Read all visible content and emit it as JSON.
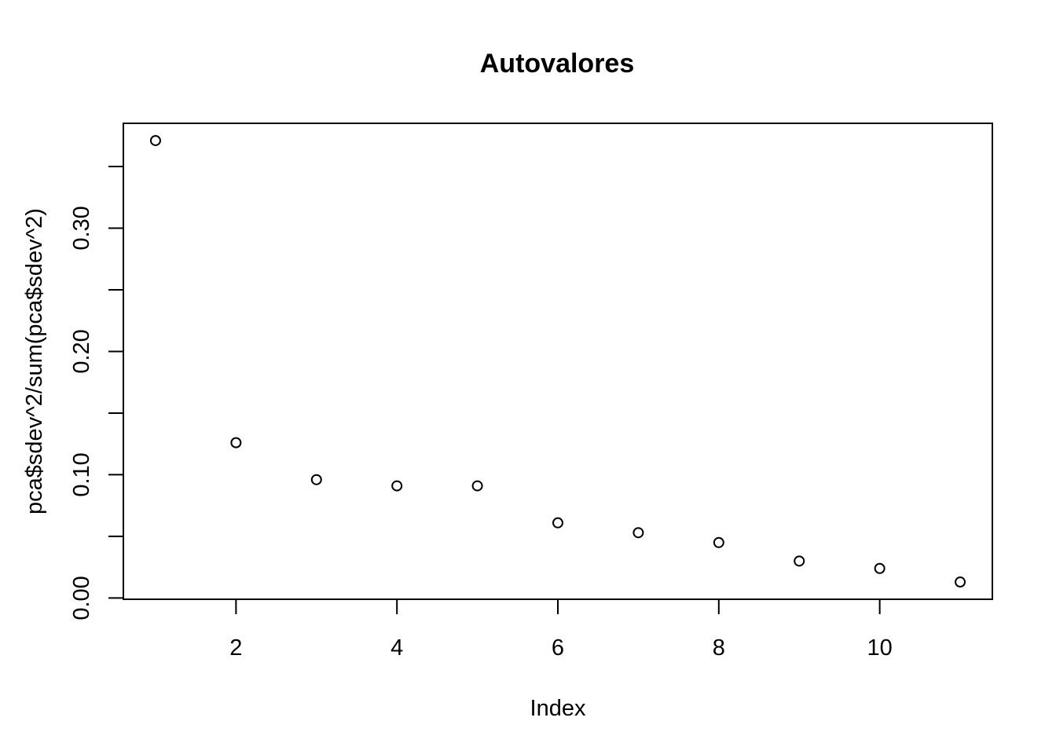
{
  "chart_data": {
    "type": "scatter",
    "title": "Autovalores",
    "xlabel": "Index",
    "ylabel": "pca$sdev^2/sum(pca$sdev^2)",
    "x": [
      1,
      2,
      3,
      4,
      5,
      6,
      7,
      8,
      9,
      10,
      11
    ],
    "y": [
      0.371,
      0.126,
      0.096,
      0.091,
      0.091,
      0.061,
      0.053,
      0.045,
      0.03,
      0.024,
      0.013
    ],
    "xlim": [
      0.6,
      11.4
    ],
    "ylim": [
      -0.001,
      0.385
    ],
    "x_ticks": [
      2,
      4,
      6,
      8,
      10
    ],
    "x_tick_labels": [
      "2",
      "4",
      "6",
      "8",
      "10"
    ],
    "y_ticks": [
      0.0,
      0.05,
      0.1,
      0.15,
      0.2,
      0.25,
      0.3,
      0.35
    ],
    "y_tick_labels": [
      "0.00",
      "",
      "0.10",
      "",
      "0.20",
      "",
      "0.30",
      ""
    ],
    "marker": "open-circle",
    "grid": false,
    "legend": "none",
    "colors": {
      "marker": "#000000",
      "axes": "#000000",
      "background": "#ffffff"
    }
  }
}
